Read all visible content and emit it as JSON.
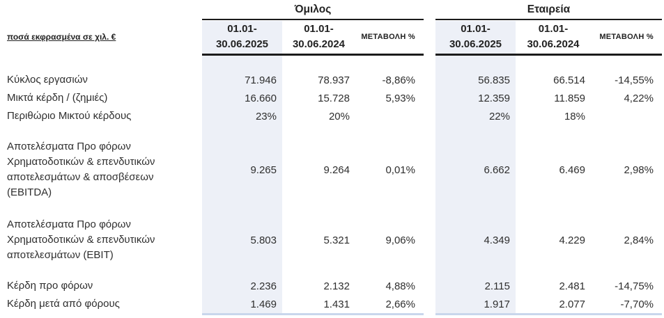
{
  "document": {
    "units_label": "ποσά εκφρασμένα σε χιλ. €",
    "sections": [
      {
        "title": "Όμιλος"
      },
      {
        "title": "Εταιρεία"
      }
    ],
    "column_headers": {
      "current_period": [
        "01.01-",
        "30.06.2025"
      ],
      "prior_period": [
        "01.01-",
        "30.06.2024"
      ],
      "change": "ΜΕΤΑΒΟΛΗ %"
    },
    "rows": [
      {
        "id": "revenue",
        "label_lines": [
          "Κύκλος εργασιών"
        ],
        "group": [
          "71.946",
          "78.937",
          "-8,86%"
        ],
        "company": [
          "56.835",
          "66.514",
          "-14,55%"
        ]
      },
      {
        "id": "gross-profit",
        "label_lines": [
          "Μικτά κέρδη / (ζημιές)"
        ],
        "group": [
          "16.660",
          "15.728",
          "5,93%"
        ],
        "company": [
          "12.359",
          "11.859",
          "4,22%"
        ]
      },
      {
        "id": "gross-margin",
        "label_lines": [
          "Περιθώριο Μικτού κέρδους"
        ],
        "group": [
          "23%",
          "20%",
          ""
        ],
        "company": [
          "22%",
          "18%",
          ""
        ]
      },
      {
        "id": "ebitda",
        "label_lines": [
          "Αποτελέσματα Προ φόρων",
          "Χρηματοδοτικών & επενδυτικών",
          "αποτελεσμάτων  & αποσβέσεων",
          "(EBITDA)"
        ],
        "group": [
          "9.265",
          "9.264",
          "0,01%"
        ],
        "company": [
          "6.662",
          "6.469",
          "2,98%"
        ]
      },
      {
        "id": "ebit",
        "label_lines": [
          "Αποτελέσματα Προ φόρων",
          "Χρηματοδοτικών & επενδυτικών",
          "αποτελεσμάτων (EBIT)"
        ],
        "group": [
          "5.803",
          "5.321",
          "9,06%"
        ],
        "company": [
          "4.349",
          "4.229",
          "2,84%"
        ]
      },
      {
        "id": "profit-before-tax",
        "label_lines": [
          "Κέρδη προ φόρων"
        ],
        "group": [
          "2.236",
          "2.132",
          "4,88%"
        ],
        "company": [
          "2.115",
          "2.481",
          "-14,75%"
        ]
      },
      {
        "id": "profit-after-tax",
        "label_lines": [
          "Κέρδη μετά από φόρους"
        ],
        "group": [
          "1.469",
          "1.431",
          "2,66%"
        ],
        "company": [
          "1.917",
          "2.077",
          "-7,70%"
        ]
      }
    ],
    "colors": {
      "highlight_column_bg": "#EDF0F7",
      "header_rule": "#1b1b1b",
      "bottom_rule": "#C9D6EC",
      "text": "#2e2e2e"
    }
  }
}
